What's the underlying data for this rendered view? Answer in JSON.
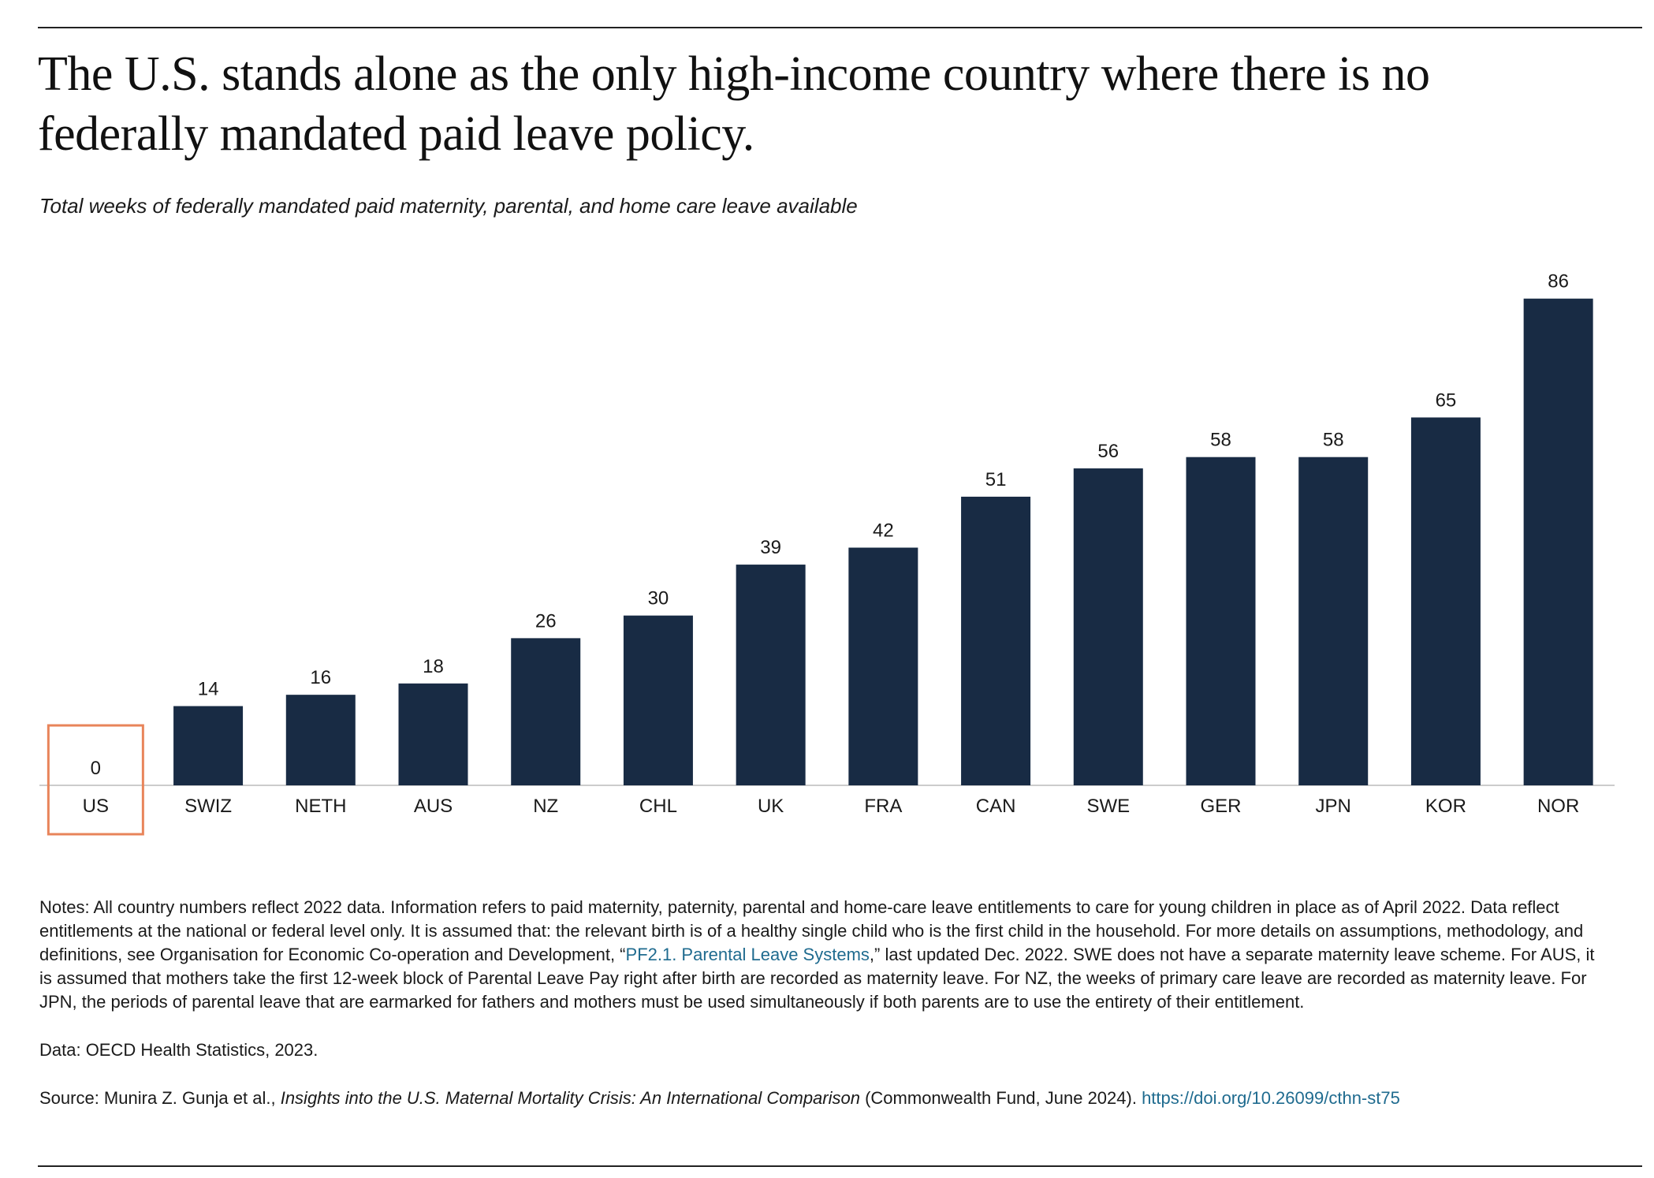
{
  "title": "The U.S. stands alone as the only high-income country where there is no federally mandated paid leave policy.",
  "subtitle": "Total weeks of federally mandated paid maternity, parental, and home care leave available",
  "colors": {
    "bar": "#182b44",
    "highlight": "#e8845a",
    "axis": "#cccccc"
  },
  "chart_data": {
    "type": "bar",
    "categories": [
      "US",
      "SWIZ",
      "NETH",
      "AUS",
      "NZ",
      "CHL",
      "UK",
      "FRA",
      "CAN",
      "SWE",
      "GER",
      "JPN",
      "KOR",
      "NOR"
    ],
    "values": [
      0,
      14,
      16,
      18,
      26,
      30,
      39,
      42,
      51,
      56,
      58,
      58,
      65,
      86
    ],
    "highlighted_category": "US",
    "ylim": [
      0,
      90
    ],
    "grid": false,
    "data_labels": true
  },
  "notes": {
    "text_before_link": "Notes: All country numbers reflect 2022 data. Information refers to paid maternity, paternity, parental and home-care leave entitlements to care for young children in place as of April 2022. Data reflect entitlements at the national or federal level only. It is assumed that: the relevant birth is of a healthy single child who is the first child in the household. For more details on assumptions, methodology, and definitions, see Organisation for Economic Co-operation and Development, “",
    "link": "PF2.1. Parental Leave Systems",
    "text_after_link": ",” last updated Dec. 2022. SWE does not have a separate maternity leave scheme. For AUS, it is assumed that mothers take the first 12-week block of Parental Leave Pay right after birth are recorded as maternity leave. For NZ, the weeks of primary care leave are recorded as maternity leave. For JPN, the periods of parental leave that are earmarked for fathers and mothers must be used simultaneously if both parents are to use the entirety of their entitlement."
  },
  "data_line": "Data: OECD Health Statistics, 2023.",
  "source": {
    "prefix": "Source: Munira Z. Gunja et al., ",
    "title": "Insights into the U.S. Maternal Mortality Crisis: An International Comparison",
    "suffix": " (Commonwealth Fund, June 2024). ",
    "url": "https://doi.org/10.26099/cthn-st75"
  }
}
